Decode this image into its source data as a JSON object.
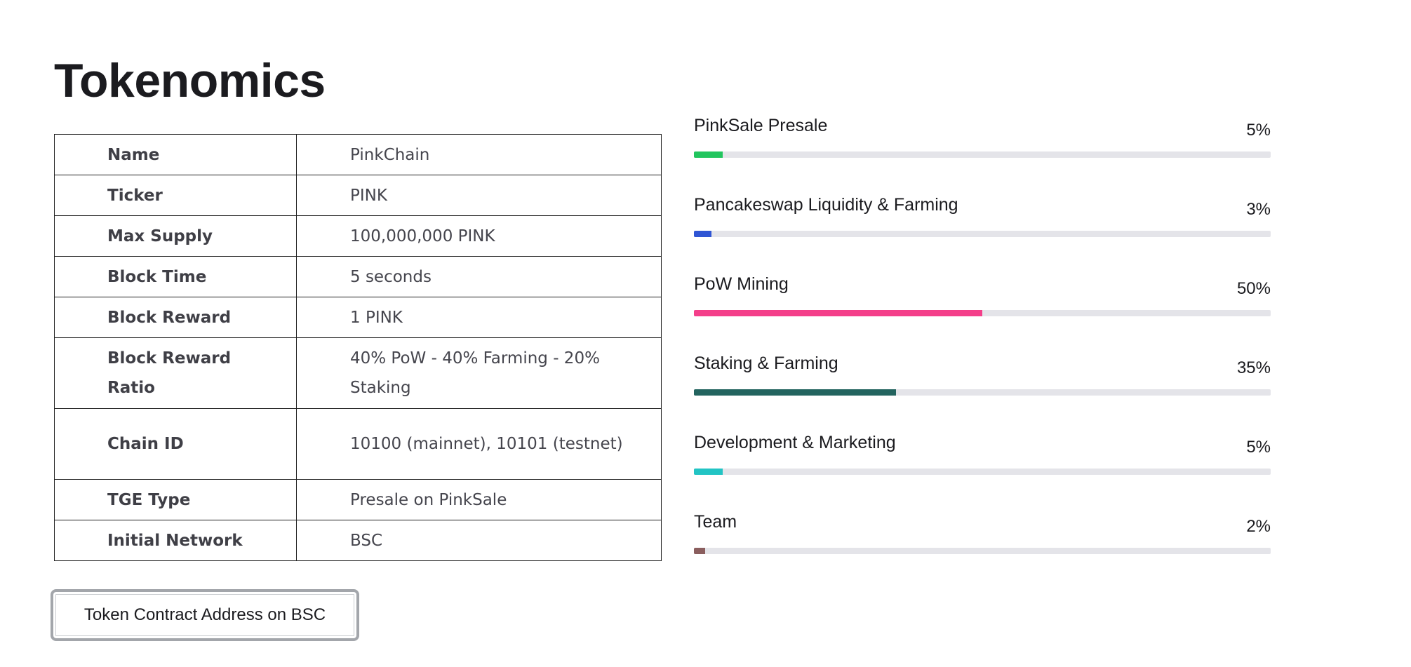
{
  "page": {
    "title": "Tokenomics"
  },
  "specs": [
    {
      "key": "Name",
      "value": "PinkChain"
    },
    {
      "key": "Ticker",
      "value": "PINK"
    },
    {
      "key": "Max Supply",
      "value": "100,000,000 PINK"
    },
    {
      "key": "Block Time",
      "value": "5 seconds"
    },
    {
      "key": "Block Reward",
      "value": "1 PINK"
    },
    {
      "key": "Block Reward Ratio",
      "value": "40% PoW - 40% Farming - 20% Staking"
    },
    {
      "key": "Chain ID",
      "value": "10100 (mainnet), 10101 (testnet)"
    },
    {
      "key": "TGE Type",
      "value": "Presale on PinkSale"
    },
    {
      "key": "Initial Network",
      "value": "BSC"
    }
  ],
  "contract_button": {
    "label": "Token Contract Address on BSC"
  },
  "allocations": [
    {
      "label": "PinkSale Presale",
      "percent_text": "5%",
      "percent": 5,
      "color": "#22c55e"
    },
    {
      "label": "Pancakeswap Liquidity & Farming",
      "percent_text": "3%",
      "percent": 3,
      "color": "#2f55d4"
    },
    {
      "label": "PoW Mining",
      "percent_text": "50%",
      "percent": 50,
      "color": "#f43f8a"
    },
    {
      "label": "Staking & Farming",
      "percent_text": "35%",
      "percent": 35,
      "color": "#23645f"
    },
    {
      "label": "Development & Marketing",
      "percent_text": "5%",
      "percent": 5,
      "color": "#22c4c4"
    },
    {
      "label": "Team",
      "percent_text": "2%",
      "percent": 2,
      "color": "#8a5e5e"
    }
  ]
}
